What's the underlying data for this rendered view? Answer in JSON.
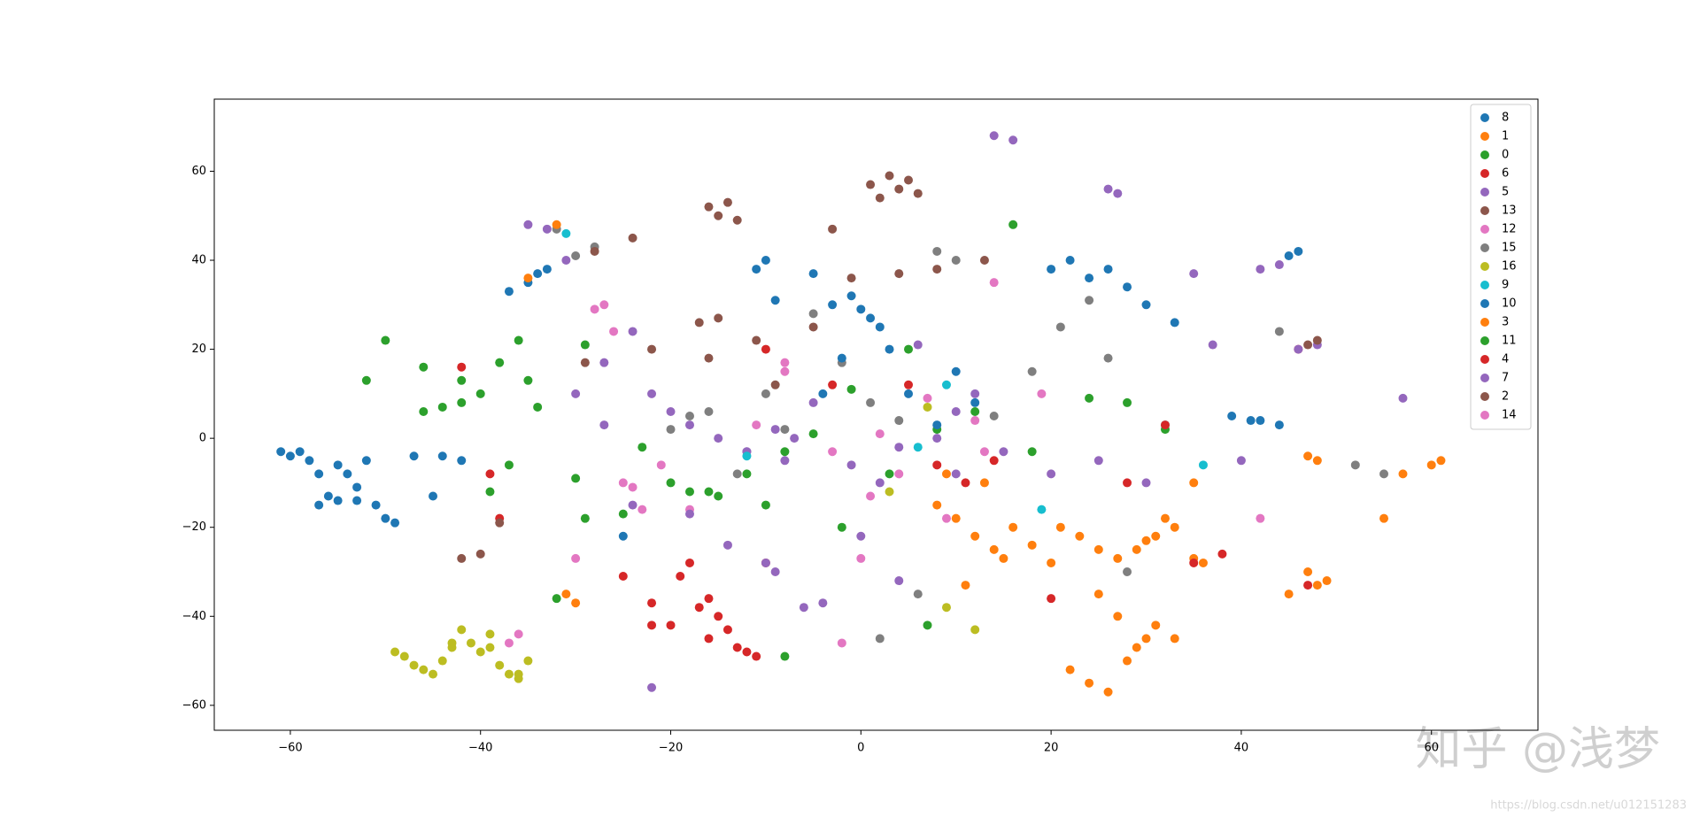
{
  "chart_data": {
    "type": "scatter",
    "xlim": [
      -68,
      71.2
    ],
    "ylim": [
      -65.6,
      76.2
    ],
    "xticks": [
      {
        "value": -60,
        "label": "−60"
      },
      {
        "value": -40,
        "label": "−40"
      },
      {
        "value": -20,
        "label": "−20"
      },
      0,
      20,
      40,
      60
    ],
    "yticks": [
      {
        "value": -60,
        "label": "−60"
      },
      {
        "value": -40,
        "label": "−40"
      },
      {
        "value": -20,
        "label": "−20"
      },
      0,
      20,
      40,
      60
    ],
    "legend": "upper right",
    "series": [
      {
        "name": "8",
        "color": "#1f77b4",
        "x": [
          -61,
          -60,
          -59,
          -58,
          -57,
          -56,
          -55,
          -54,
          -53,
          -52,
          -57,
          -55,
          -53,
          -51,
          -50,
          -49,
          -47,
          -44,
          -42,
          -45,
          -37,
          -35,
          -34,
          -33
        ],
        "values": [
          -3,
          -4,
          -3,
          -5,
          -8,
          -13,
          -14,
          -8,
          -11,
          -5,
          -15,
          -6,
          -14,
          -15,
          -18,
          -19,
          -4,
          -4,
          -5,
          -13,
          33,
          35,
          37,
          38
        ]
      },
      {
        "name": "1",
        "color": "#ff7f0e",
        "x": [
          8,
          10,
          12,
          14,
          11,
          16,
          9,
          13,
          22,
          24,
          26,
          28,
          30,
          25,
          27,
          29,
          31,
          33,
          35,
          47,
          48,
          45,
          49,
          55,
          57,
          60,
          61
        ],
        "values": [
          -15,
          -18,
          -22,
          -25,
          -33,
          -20,
          -8,
          -10,
          -52,
          -55,
          -57,
          -50,
          -45,
          -35,
          -40,
          -25,
          -22,
          -20,
          -27,
          -30,
          -33,
          -35,
          -32,
          -18,
          -8,
          -6,
          -5
        ]
      },
      {
        "name": "0",
        "color": "#2ca02c",
        "x": [
          -50,
          -52,
          -46,
          -44,
          -42,
          -40,
          -38,
          -36,
          -35,
          -34,
          -42,
          -39,
          -37,
          -46,
          -30,
          -25,
          -20,
          -18,
          -15,
          -12,
          -8,
          -5,
          -1,
          5,
          8,
          12
        ],
        "values": [
          22,
          13,
          16,
          7,
          13,
          10,
          17,
          22,
          13,
          7,
          8,
          -12,
          -6,
          6,
          -9,
          -17,
          -10,
          -12,
          -13,
          -8,
          -3,
          1,
          11,
          20,
          2,
          6
        ]
      },
      {
        "name": "6",
        "color": "#d62728",
        "x": [
          -25,
          -22,
          -20,
          -18,
          -16,
          -15,
          -14,
          -13,
          -12,
          -11,
          -19,
          -22,
          -17,
          -10,
          -16
        ],
        "values": [
          -31,
          -37,
          -42,
          -28,
          -36,
          -40,
          -43,
          -47,
          -48,
          -49,
          -31,
          -42,
          -38,
          -28,
          -45
        ]
      },
      {
        "name": "5",
        "color": "#9467bd",
        "x": [
          -35,
          -33,
          -31,
          -27,
          -24,
          -22,
          -20,
          -18,
          -15,
          -12,
          -10,
          -9,
          -8,
          -7,
          -4,
          -1,
          2,
          6,
          14,
          16,
          26,
          27,
          -12,
          -9,
          -5,
          4,
          8,
          10,
          12
        ],
        "values": [
          48,
          47,
          40,
          17,
          24,
          10,
          6,
          3,
          0,
          -3,
          -28,
          -30,
          -5,
          0,
          -37,
          -6,
          -10,
          21,
          68,
          67,
          56,
          55,
          -3,
          2,
          8,
          -2,
          0,
          6,
          10
        ]
      },
      {
        "name": "13",
        "color": "#8c564b",
        "x": [
          -16,
          -15,
          -14,
          -13,
          1,
          2,
          3,
          4,
          5,
          6,
          -3,
          -17,
          -15
        ],
        "values": [
          52,
          50,
          53,
          49,
          57,
          54,
          59,
          56,
          58,
          55,
          47,
          26,
          27
        ]
      },
      {
        "name": "12",
        "color": "#e377c2",
        "x": [
          -27,
          -28,
          -25,
          -24,
          -23,
          -37,
          -36,
          -18,
          -8,
          -3,
          0,
          2,
          4,
          9,
          12,
          42,
          14,
          -21
        ],
        "values": [
          30,
          29,
          -10,
          -11,
          -16,
          -46,
          -44,
          -16,
          15,
          -3,
          -27,
          1,
          -8,
          -18,
          4,
          -18,
          35,
          -6
        ]
      },
      {
        "name": "15",
        "color": "#7f7f7f",
        "x": [
          -32,
          -30,
          -28,
          -20,
          -18,
          -16,
          -13,
          -10,
          -8,
          -5,
          -2,
          1,
          4,
          6,
          8,
          10,
          14,
          18,
          21,
          24,
          26,
          28,
          44,
          52,
          55,
          2
        ],
        "values": [
          47,
          41,
          43,
          2,
          5,
          6,
          -8,
          10,
          2,
          28,
          17,
          8,
          4,
          -35,
          42,
          40,
          5,
          15,
          25,
          31,
          18,
          -30,
          24,
          -6,
          -8,
          -45
        ]
      },
      {
        "name": "16",
        "color": "#bcbd22",
        "x": [
          -49,
          -48,
          -47,
          -45,
          -44,
          -43,
          -42,
          -41,
          -40,
          -39,
          -38,
          -37,
          -36,
          -35,
          -46,
          -43,
          -39,
          -36,
          3,
          7,
          12,
          9
        ],
        "values": [
          -48,
          -49,
          -51,
          -53,
          -50,
          -47,
          -43,
          -46,
          -48,
          -44,
          -51,
          -53,
          -54,
          -50,
          -52,
          -46,
          -47,
          -53,
          -12,
          7,
          -43,
          -38
        ]
      },
      {
        "name": "9",
        "color": "#17becf",
        "x": [
          -31,
          9,
          19,
          32,
          36,
          -12,
          6
        ],
        "values": [
          46,
          12,
          -16,
          3,
          -6,
          -4,
          -2
        ]
      },
      {
        "name": "10",
        "color": "#1f77b4",
        "x": [
          -11,
          -10,
          -9,
          -5,
          -3,
          -1,
          0,
          1,
          2,
          -4,
          -2,
          3,
          5,
          8,
          10,
          12,
          20,
          22,
          24,
          26,
          28,
          30,
          33,
          42,
          44,
          45,
          46,
          39,
          41,
          -25
        ],
        "values": [
          38,
          40,
          31,
          37,
          30,
          32,
          29,
          27,
          25,
          10,
          18,
          20,
          10,
          3,
          15,
          8,
          38,
          40,
          36,
          38,
          34,
          30,
          26,
          4,
          3,
          41,
          42,
          5,
          4,
          -22
        ]
      },
      {
        "name": "3",
        "color": "#ff7f0e",
        "x": [
          21,
          23,
          25,
          27,
          29,
          31,
          33,
          30,
          32,
          35,
          36,
          -32,
          -35,
          -31,
          -30,
          47,
          48,
          15,
          18,
          20
        ],
        "values": [
          -20,
          -22,
          -25,
          -27,
          -47,
          -42,
          -45,
          -23,
          -18,
          -10,
          -28,
          48,
          36,
          -35,
          -37,
          -4,
          -5,
          -27,
          -24,
          -28
        ]
      },
      {
        "name": "11",
        "color": "#2ca02c",
        "x": [
          -32,
          -29,
          -23,
          -16,
          -10,
          -2,
          3,
          7,
          16,
          18,
          24,
          28,
          32,
          -29,
          -8
        ],
        "values": [
          -36,
          -18,
          -2,
          -12,
          -15,
          -20,
          -8,
          -42,
          48,
          -3,
          9,
          8,
          2,
          21,
          -49
        ]
      },
      {
        "name": "4",
        "color": "#d62728",
        "x": [
          -42,
          -39,
          -38,
          -10,
          -3,
          5,
          8,
          11,
          14,
          20,
          28,
          32,
          35,
          38,
          46,
          47
        ],
        "values": [
          16,
          -8,
          -18,
          20,
          12,
          12,
          -6,
          -10,
          -5,
          -36,
          -10,
          3,
          -28,
          -26,
          20,
          -33
        ]
      },
      {
        "name": "7",
        "color": "#9467bd",
        "x": [
          -30,
          -27,
          -24,
          -18,
          -14,
          -6,
          0,
          4,
          10,
          15,
          20,
          25,
          30,
          35,
          40,
          42,
          44,
          46,
          48,
          57,
          -22,
          37
        ],
        "values": [
          10,
          3,
          -15,
          -17,
          -24,
          -38,
          -22,
          -32,
          -8,
          -3,
          -8,
          -5,
          -10,
          37,
          -5,
          38,
          39,
          20,
          21,
          9,
          -56,
          21
        ]
      },
      {
        "name": "2",
        "color": "#8c564b",
        "x": [
          -42,
          -40,
          -38,
          -24,
          -22,
          -16,
          -11,
          -9,
          -5,
          -1,
          4,
          8,
          13,
          -29,
          -28,
          47,
          48
        ],
        "values": [
          -27,
          -26,
          -19,
          45,
          20,
          18,
          22,
          12,
          25,
          36,
          37,
          38,
          40,
          17,
          42,
          21,
          22
        ]
      },
      {
        "name": "14",
        "color": "#e377c2",
        "x": [
          -30,
          -26,
          -11,
          -8,
          1,
          7,
          13,
          19,
          -2
        ],
        "values": [
          -27,
          24,
          3,
          17,
          -13,
          9,
          -3,
          10,
          -46
        ]
      }
    ],
    "watermark": "知乎 @浅梦",
    "source_url": "https://blog.csdn.net/u012151283"
  }
}
